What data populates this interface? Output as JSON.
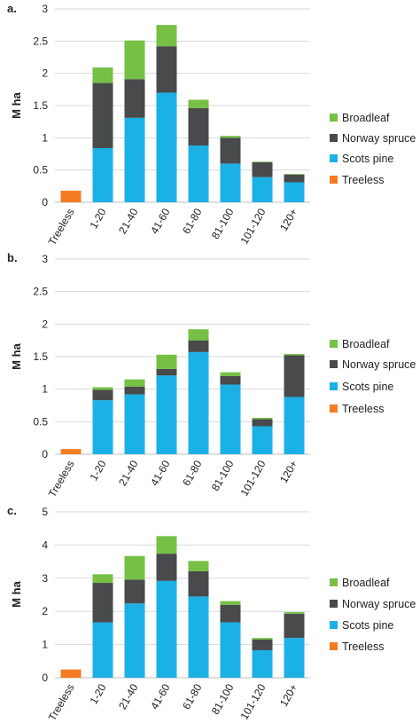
{
  "chart_data": [
    {
      "type": "bar",
      "stacked": true,
      "panel_label": "a.",
      "ylabel": "M ha",
      "ylim": [
        0,
        3
      ],
      "yticks": [
        "0",
        "0.5",
        "1",
        "1.5",
        "2",
        "2.5",
        "3"
      ],
      "categories": [
        "Treeless",
        "1-20",
        "21-40",
        "41-60",
        "61-80",
        "81-100",
        "101-120",
        "120+"
      ],
      "series": [
        {
          "name": "Treeless",
          "color": "#F47B20",
          "values": [
            0.18,
            0,
            0,
            0,
            0,
            0,
            0,
            0
          ]
        },
        {
          "name": "Scots pine",
          "color": "#1BB1E7",
          "values": [
            0,
            0.84,
            1.31,
            1.7,
            0.88,
            0.6,
            0.39,
            0.31
          ]
        },
        {
          "name": "Norway spruce",
          "color": "#484A4C",
          "values": [
            0,
            1.01,
            0.6,
            0.72,
            0.58,
            0.4,
            0.23,
            0.12
          ]
        },
        {
          "name": "Broadleaf",
          "color": "#76C045",
          "values": [
            0,
            0.24,
            0.6,
            0.33,
            0.13,
            0.03,
            0.01,
            0.01
          ]
        }
      ],
      "legend": [
        "Broadleaf",
        "Norway spruce",
        "Scots pine",
        "Treeless"
      ],
      "legend_position": "right",
      "grid": true
    },
    {
      "type": "bar",
      "stacked": true,
      "panel_label": "b.",
      "ylabel": "M ha",
      "ylim": [
        0,
        3
      ],
      "yticks": [
        "0",
        "0.5",
        "1",
        "1.5",
        "2",
        "2.5",
        "3"
      ],
      "categories": [
        "Treeless",
        "1-20",
        "21-40",
        "41-60",
        "61-80",
        "81-100",
        "101-120",
        "120+"
      ],
      "series": [
        {
          "name": "Treeless",
          "color": "#F47B20",
          "values": [
            0.08,
            0,
            0,
            0,
            0,
            0,
            0,
            0
          ]
        },
        {
          "name": "Scots pine",
          "color": "#1BB1E7",
          "values": [
            0,
            0.83,
            0.92,
            1.21,
            1.57,
            1.07,
            0.43,
            0.88
          ]
        },
        {
          "name": "Norway spruce",
          "color": "#484A4C",
          "values": [
            0,
            0.16,
            0.12,
            0.1,
            0.18,
            0.13,
            0.11,
            0.64
          ]
        },
        {
          "name": "Broadleaf",
          "color": "#76C045",
          "values": [
            0,
            0.04,
            0.11,
            0.22,
            0.17,
            0.06,
            0.02,
            0.02
          ]
        }
      ],
      "legend": [
        "Broadleaf",
        "Norway spruce",
        "Scots pine",
        "Treeless"
      ],
      "legend_position": "right",
      "grid": true
    },
    {
      "type": "bar",
      "stacked": true,
      "panel_label": "c.",
      "ylabel": "M ha",
      "ylim": [
        0,
        5
      ],
      "yticks": [
        "0",
        "1",
        "2",
        "3",
        "4",
        "5"
      ],
      "categories": [
        "Treeless",
        "1-20",
        "21-40",
        "41-60",
        "61-80",
        "81-100",
        "101-120",
        "120+"
      ],
      "series": [
        {
          "name": "Treeless",
          "color": "#F47B20",
          "values": [
            0.25,
            0,
            0,
            0,
            0,
            0,
            0,
            0
          ]
        },
        {
          "name": "Scots pine",
          "color": "#1BB1E7",
          "values": [
            0,
            1.67,
            2.24,
            2.92,
            2.45,
            1.67,
            0.83,
            1.2
          ]
        },
        {
          "name": "Norway spruce",
          "color": "#484A4C",
          "values": [
            0,
            1.19,
            0.72,
            0.82,
            0.76,
            0.53,
            0.32,
            0.73
          ]
        },
        {
          "name": "Broadleaf",
          "color": "#76C045",
          "values": [
            0,
            0.26,
            0.71,
            0.53,
            0.31,
            0.11,
            0.05,
            0.05
          ]
        }
      ],
      "legend": [
        "Broadleaf",
        "Norway spruce",
        "Scots pine",
        "Treeless"
      ],
      "legend_position": "right",
      "grid": true
    }
  ]
}
